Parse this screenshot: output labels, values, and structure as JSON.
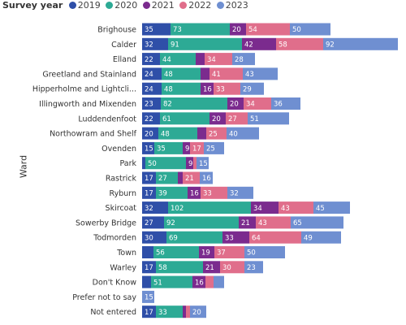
{
  "legend": {
    "title": "Survey year",
    "items": [
      {
        "label": "2019",
        "color": "#2f4fa8"
      },
      {
        "label": "2020",
        "color": "#2daa95"
      },
      {
        "label": "2021",
        "color": "#7b2b8e"
      },
      {
        "label": "2022",
        "color": "#e06e8b"
      },
      {
        "label": "2023",
        "color": "#6f8fd1"
      }
    ]
  },
  "chart_data": {
    "type": "bar",
    "orientation": "horizontal",
    "stacked": true,
    "title": "",
    "xlabel": "",
    "ylabel": "Ward",
    "legend_title": "Survey year",
    "legend_position": "top-left",
    "categories": [
      "Brighouse",
      "Calder",
      "Elland",
      "Greetland and Stainland",
      "Hipperholme and Lightcli...",
      "Illingworth and Mixenden",
      "Luddendenfoot",
      "Northowram and Shelf",
      "Ovenden",
      "Park",
      "Rastrick",
      "Ryburn",
      "Skircoat",
      "Sowerby Bridge",
      "Todmorden",
      "Town",
      "Warley",
      "Don't Know",
      "Prefer not to say",
      "Not entered"
    ],
    "series": [
      {
        "name": "2019",
        "values": [
          35,
          32,
          22,
          24,
          24,
          23,
          22,
          20,
          15,
          4,
          17,
          17,
          32,
          27,
          30,
          14,
          17,
          11,
          0,
          17
        ]
      },
      {
        "name": "2020",
        "values": [
          73,
          91,
          44,
          48,
          48,
          82,
          61,
          48,
          35,
          50,
          27,
          39,
          102,
          92,
          69,
          56,
          58,
          51,
          0,
          33
        ]
      },
      {
        "name": "2021",
        "values": [
          20,
          42,
          11,
          11,
          16,
          20,
          20,
          11,
          9,
          9,
          6,
          16,
          34,
          21,
          33,
          19,
          21,
          16,
          0,
          4
        ]
      },
      {
        "name": "2022",
        "values": [
          54,
          58,
          34,
          41,
          33,
          34,
          27,
          25,
          17,
          4,
          21,
          33,
          43,
          43,
          64,
          37,
          30,
          10,
          0,
          5
        ]
      },
      {
        "name": "2023",
        "values": [
          50,
          92,
          28,
          43,
          29,
          36,
          51,
          40,
          25,
          15,
          16,
          32,
          45,
          65,
          49,
          50,
          23,
          13,
          15,
          20
        ]
      }
    ],
    "data_labels": [
      [
        "35",
        "73",
        "20",
        "54",
        "50"
      ],
      [
        "32",
        "91",
        "42",
        "58",
        "92"
      ],
      [
        "22",
        "44",
        "",
        "34",
        "28"
      ],
      [
        "24",
        "48",
        "",
        "41",
        "43"
      ],
      [
        "24",
        "48",
        "16",
        "33",
        "29"
      ],
      [
        "23",
        "82",
        "20",
        "34",
        "36"
      ],
      [
        "22",
        "61",
        "20",
        "27",
        "51"
      ],
      [
        "20",
        "48",
        "",
        "25",
        "40"
      ],
      [
        "15",
        "35",
        "9",
        "17",
        "25"
      ],
      [
        "",
        "50",
        "9",
        "",
        "15"
      ],
      [
        "17",
        "27",
        "",
        "21",
        "16"
      ],
      [
        "17",
        "39",
        "16",
        "33",
        "32"
      ],
      [
        "32",
        "102",
        "34",
        "43",
        "45"
      ],
      [
        "27",
        "92",
        "21",
        "43",
        "65"
      ],
      [
        "30",
        "69",
        "33",
        "64",
        "49"
      ],
      [
        "",
        "56",
        "19",
        "37",
        "50"
      ],
      [
        "17",
        "58",
        "21",
        "30",
        "23"
      ],
      [
        "",
        "51",
        "16",
        "",
        ""
      ],
      [
        "",
        "",
        "",
        "",
        "15"
      ],
      [
        "17",
        "33",
        "",
        "",
        "20"
      ]
    ],
    "grid": false
  }
}
